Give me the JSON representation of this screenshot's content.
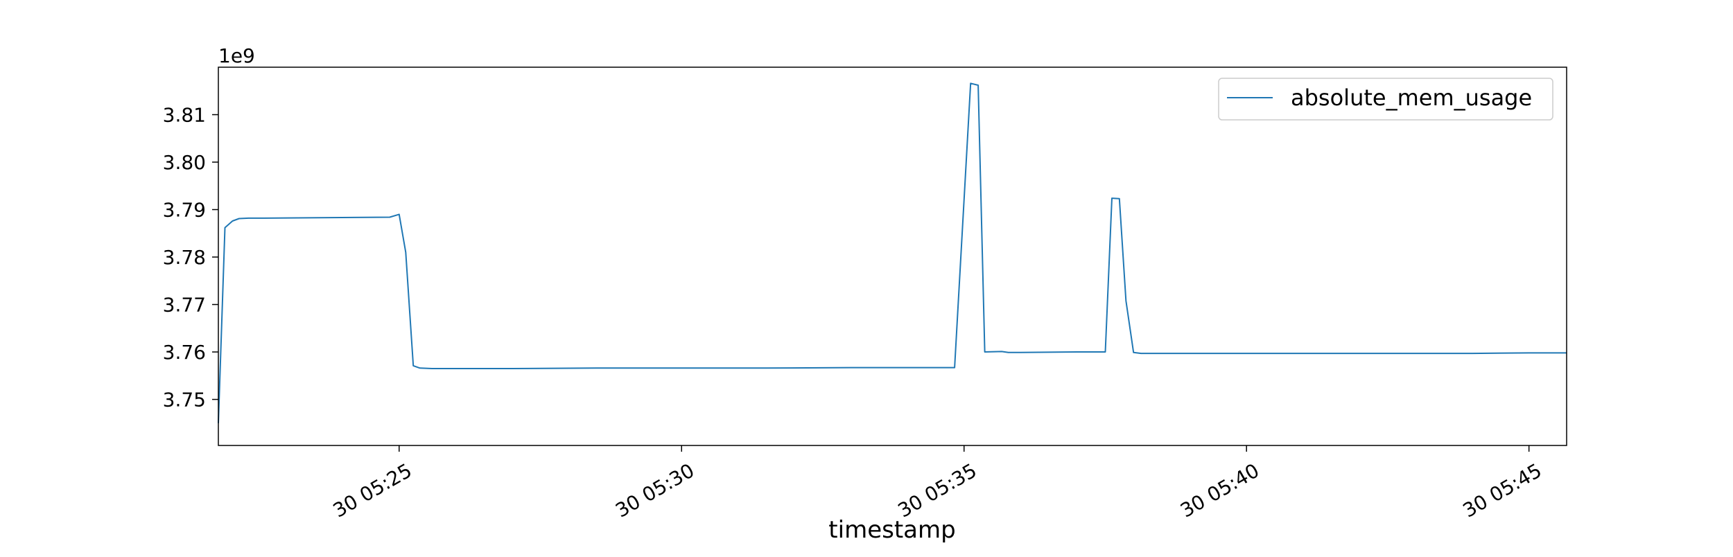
{
  "chart_data": {
    "type": "line",
    "title": "",
    "xlabel": "timestamp",
    "ylabel": "",
    "y_offset_label": "1e9",
    "y_scale_factor": 1000000000,
    "xlim": [
      "05:21:48",
      "05:45:40"
    ],
    "ylim": [
      3.7403,
      3.82
    ],
    "grid": false,
    "legend_position": "top-right",
    "x_ticks": [
      {
        "time": "05:25:00",
        "label": "30 05:25"
      },
      {
        "time": "05:30:00",
        "label": "30 05:30"
      },
      {
        "time": "05:35:00",
        "label": "30 05:35"
      },
      {
        "time": "05:40:00",
        "label": "30 05:40"
      },
      {
        "time": "05:45:00",
        "label": "30 05:45"
      }
    ],
    "y_ticks": [
      {
        "value": 3.75,
        "label": "3.75"
      },
      {
        "value": 3.76,
        "label": "3.76"
      },
      {
        "value": 3.77,
        "label": "3.77"
      },
      {
        "value": 3.78,
        "label": "3.78"
      },
      {
        "value": 3.79,
        "label": "3.79"
      },
      {
        "value": 3.8,
        "label": "3.80"
      },
      {
        "value": 3.81,
        "label": "3.81"
      }
    ],
    "series": [
      {
        "name": "absolute_mem_usage",
        "color": "#1f77b4",
        "x": [
          "05:21:48",
          "05:21:55",
          "05:22:03",
          "05:22:10",
          "05:22:20",
          "05:22:35",
          "05:24:50",
          "05:25:00",
          "05:25:07",
          "05:25:15",
          "05:25:22",
          "05:25:35",
          "05:27:00",
          "05:28:30",
          "05:30:00",
          "05:31:30",
          "05:33:00",
          "05:34:50",
          "05:35:07",
          "05:35:15",
          "05:35:22",
          "05:35:40",
          "05:35:47",
          "05:36:00",
          "05:37:00",
          "05:37:30",
          "05:37:37",
          "05:37:45",
          "05:37:52",
          "05:38:00",
          "05:38:08",
          "05:38:15",
          "05:39:00",
          "05:40:00",
          "05:41:00",
          "05:42:00",
          "05:43:00",
          "05:44:00",
          "05:45:00",
          "05:45:40"
        ],
        "y": [
          3.745,
          3.7862,
          3.7876,
          3.7881,
          3.7882,
          3.7882,
          3.7884,
          3.789,
          3.781,
          3.7571,
          3.7566,
          3.7565,
          3.7565,
          3.7566,
          3.7566,
          3.7566,
          3.7567,
          3.7567,
          3.8166,
          3.8162,
          3.76,
          3.7601,
          3.7599,
          3.7599,
          3.76,
          3.76,
          3.7924,
          3.7923,
          3.7708,
          3.7599,
          3.7597,
          3.7597,
          3.7597,
          3.7597,
          3.7597,
          3.7597,
          3.7597,
          3.7597,
          3.7598,
          3.7598
        ]
      }
    ]
  }
}
